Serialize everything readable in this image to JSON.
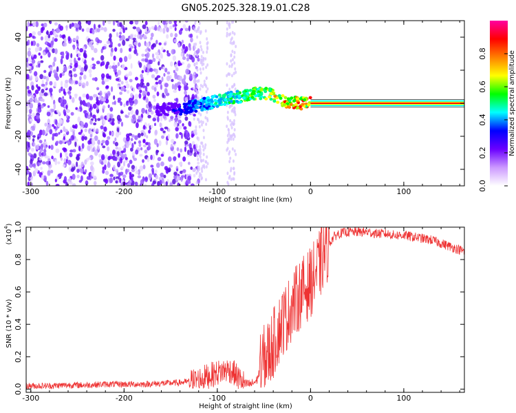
{
  "title": "GN05.2025.328.19.01.C28",
  "chart_data": [
    {
      "type": "heatmap",
      "name": "spectrogram",
      "xlabel": "Height of straight line (km)",
      "ylabel": "Frequency (Hz)",
      "xlim": [
        -305,
        165
      ],
      "ylim": [
        -50,
        50
      ],
      "xticks": [
        -300,
        -200,
        -100,
        0,
        100
      ],
      "xtick_labels": [
        "-300",
        "-200",
        "-100",
        "0",
        "100"
      ],
      "yticks": [
        40,
        20,
        0,
        -20,
        -40
      ],
      "ytick_labels": [
        "40",
        "20",
        "0",
        "-20",
        "-40"
      ],
      "colorbar": {
        "label": "Normalized spectral amplitude",
        "range": [
          0,
          1
        ],
        "ticks": [
          0.0,
          0.2,
          0.4,
          0.6,
          0.8
        ],
        "tick_labels": [
          "0.0",
          "0.2",
          "0.4",
          "0.6",
          "0.8"
        ],
        "colormap": [
          "#ffffff",
          "#cc99ff",
          "#6a00ff",
          "#0000ff",
          "#00ffff",
          "#00ff00",
          "#ffff00",
          "#ff8000",
          "#ff0000",
          "#ff00a0"
        ]
      },
      "signal_trace": [
        {
          "x": -165,
          "freq": -4
        },
        {
          "x": -135,
          "freq": -3
        },
        {
          "x": -110,
          "freq": 0
        },
        {
          "x": -90,
          "freq": 3
        },
        {
          "x": -75,
          "freq": 4
        },
        {
          "x": -60,
          "freq": 6
        },
        {
          "x": -45,
          "freq": 6
        },
        {
          "x": -35,
          "freq": 3
        },
        {
          "x": -25,
          "freq": 1
        },
        {
          "x": -10,
          "freq": 0
        },
        {
          "x": 0,
          "freq": 0
        },
        {
          "x": 165,
          "freq": 0
        }
      ]
    },
    {
      "type": "line",
      "name": "snr",
      "xlabel": "Height of straight line (km)",
      "ylabel": "SNR (10 * v/v)",
      "y_multiplier": "(x10",
      "y_multiplier_exp": "4",
      "xlim": [
        -305,
        165
      ],
      "ylim": [
        -0.02,
        1.0
      ],
      "xticks": [
        -300,
        -200,
        -100,
        0,
        100
      ],
      "xtick_labels": [
        "-300",
        "-200",
        "-100",
        "0",
        "100"
      ],
      "yticks": [
        0.0,
        0.2,
        0.4,
        0.6,
        0.8,
        1.0
      ],
      "ytick_labels": [
        "0.0",
        "0.2",
        "0.4",
        "0.6",
        "0.8",
        "1.0"
      ],
      "color": "#ee3333",
      "series": [
        {
          "name": "SNR",
          "x": [
            -305,
            -280,
            -260,
            -240,
            -220,
            -200,
            -180,
            -160,
            -140,
            -125,
            -115,
            -105,
            -95,
            -88,
            -82,
            -76,
            -70,
            -64,
            -58,
            -55,
            -50,
            -45,
            -40,
            -35,
            -30,
            -25,
            -20,
            -15,
            -10,
            -5,
            0,
            5,
            10,
            15,
            20,
            25,
            30,
            40,
            50,
            60,
            70,
            80,
            90,
            100,
            110,
            120,
            130,
            140,
            150,
            160,
            165
          ],
          "values": [
            0.02,
            0.02,
            0.025,
            0.025,
            0.03,
            0.03,
            0.03,
            0.035,
            0.04,
            0.05,
            0.07,
            0.09,
            0.11,
            0.12,
            0.1,
            0.06,
            0.03,
            0.03,
            0.05,
            0.1,
            0.18,
            0.22,
            0.28,
            0.35,
            0.42,
            0.45,
            0.52,
            0.55,
            0.6,
            0.62,
            0.66,
            0.71,
            0.77,
            0.84,
            0.9,
            0.94,
            0.96,
            0.97,
            0.97,
            0.97,
            0.96,
            0.96,
            0.95,
            0.95,
            0.94,
            0.93,
            0.92,
            0.9,
            0.88,
            0.86,
            0.85
          ]
        }
      ]
    }
  ]
}
